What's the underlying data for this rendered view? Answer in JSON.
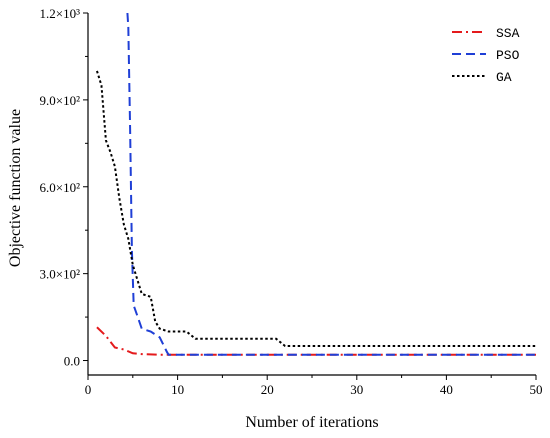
{
  "chart_data": {
    "type": "line",
    "xlabel": "Number of iterations",
    "ylabel": "Objective function value",
    "xlim": [
      0,
      50
    ],
    "ylim": [
      -50,
      1200
    ],
    "x_ticks": [
      0,
      10,
      20,
      30,
      40,
      50
    ],
    "y_ticks": [
      {
        "value": 0,
        "label": "0.0"
      },
      {
        "value": 300,
        "label": "3.0×10²"
      },
      {
        "value": 600,
        "label": "6.0×10²"
      },
      {
        "value": 900,
        "label": "9.0×10²"
      },
      {
        "value": 1200,
        "label": "1.2×10³"
      }
    ],
    "grid": false,
    "legend_position": "top-right",
    "series": [
      {
        "name": "SSA",
        "color": "#e41a1c",
        "dash": "dashdot",
        "points": [
          [
            1,
            115
          ],
          [
            2,
            85
          ],
          [
            3,
            45
          ],
          [
            4,
            38
          ],
          [
            5,
            25
          ],
          [
            6,
            22
          ],
          [
            8,
            20
          ],
          [
            10,
            20
          ],
          [
            20,
            20
          ],
          [
            30,
            20
          ],
          [
            40,
            20
          ],
          [
            50,
            20
          ]
        ]
      },
      {
        "name": "PSO",
        "color": "#1f3fd6",
        "dash": "dash",
        "points": [
          [
            4.4,
            1200
          ],
          [
            4.5,
            1150
          ],
          [
            4.7,
            800
          ],
          [
            4.9,
            380
          ],
          [
            5.1,
            190
          ],
          [
            5.5,
            155
          ],
          [
            6,
            110
          ],
          [
            7,
            100
          ],
          [
            8,
            80
          ],
          [
            8.8,
            30
          ],
          [
            9,
            20
          ],
          [
            10,
            20
          ],
          [
            20,
            20
          ],
          [
            30,
            20
          ],
          [
            40,
            20
          ],
          [
            50,
            20
          ]
        ]
      },
      {
        "name": "GA",
        "color": "#000000",
        "dash": "dot",
        "points": [
          [
            1,
            1000
          ],
          [
            1.5,
            950
          ],
          [
            2,
            760
          ],
          [
            2.5,
            720
          ],
          [
            3,
            670
          ],
          [
            3.5,
            560
          ],
          [
            4,
            470
          ],
          [
            4.5,
            420
          ],
          [
            5,
            330
          ],
          [
            5.5,
            280
          ],
          [
            6,
            230
          ],
          [
            7,
            220
          ],
          [
            7.5,
            135
          ],
          [
            8,
            110
          ],
          [
            9,
            100
          ],
          [
            11,
            100
          ],
          [
            12,
            75
          ],
          [
            21,
            75
          ],
          [
            22,
            50
          ],
          [
            30,
            50
          ],
          [
            40,
            50
          ],
          [
            50,
            50
          ]
        ]
      }
    ]
  }
}
